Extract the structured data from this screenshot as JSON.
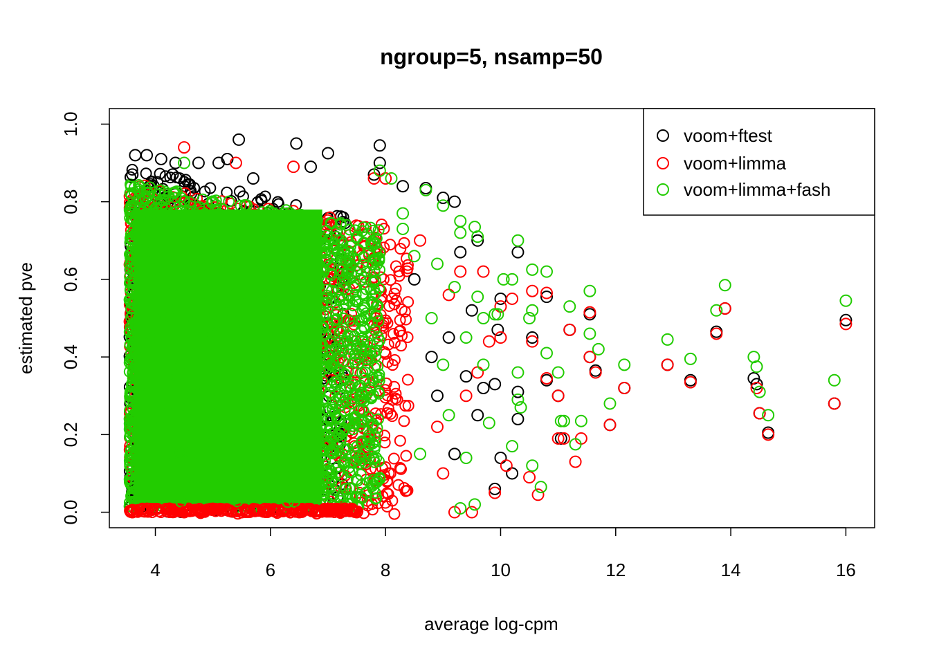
{
  "chart_data": {
    "type": "scatter",
    "title": "ngroup=5, nsamp=50",
    "xlabel": "average log-cpm",
    "ylabel": "estimated pve",
    "xlim": [
      3.2,
      16.5
    ],
    "ylim": [
      -0.04,
      1.04
    ],
    "x_ticks": [
      4,
      6,
      8,
      10,
      12,
      14,
      16
    ],
    "y_ticks": [
      0.0,
      0.2,
      0.4,
      0.6,
      0.8,
      1.0
    ],
    "x_tick_labels": [
      "4",
      "6",
      "8",
      "10",
      "12",
      "14",
      "16"
    ],
    "y_tick_labels": [
      "0.0",
      "0.2",
      "0.4",
      "0.6",
      "0.8",
      "1.0"
    ],
    "grid": false,
    "legend_position": "top-right",
    "marker": "open-circle",
    "dense_region": {
      "x_range": [
        3.55,
        7.9
      ],
      "y_range": [
        0.0,
        0.85
      ],
      "note": "thousands of overlapping points"
    },
    "series": [
      {
        "name": "voom+ftest",
        "color": "#000000",
        "points": [
          [
            3.65,
            0.92
          ],
          [
            3.85,
            0.92
          ],
          [
            4.1,
            0.91
          ],
          [
            4.35,
            0.9
          ],
          [
            4.75,
            0.9
          ],
          [
            5.1,
            0.9
          ],
          [
            5.25,
            0.91
          ],
          [
            5.45,
            0.96
          ],
          [
            6.45,
            0.95
          ],
          [
            7.0,
            0.925
          ],
          [
            7.9,
            0.945
          ],
          [
            7.9,
            0.9
          ],
          [
            3.6,
            0.87
          ],
          [
            4.3,
            0.87
          ],
          [
            5.7,
            0.86
          ],
          [
            6.7,
            0.89
          ],
          [
            7.8,
            0.87
          ],
          [
            8.3,
            0.84
          ],
          [
            8.7,
            0.835
          ],
          [
            9.0,
            0.81
          ],
          [
            9.2,
            0.8
          ],
          [
            9.3,
            0.67
          ],
          [
            9.6,
            0.7
          ],
          [
            9.5,
            0.52
          ],
          [
            9.7,
            0.32
          ],
          [
            9.9,
            0.33
          ],
          [
            9.95,
            0.47
          ],
          [
            10.0,
            0.55
          ],
          [
            10.3,
            0.67
          ],
          [
            10.3,
            0.31
          ],
          [
            10.3,
            0.24
          ],
          [
            10.0,
            0.14
          ],
          [
            10.2,
            0.1
          ],
          [
            9.9,
            0.06
          ],
          [
            10.55,
            0.45
          ],
          [
            10.8,
            0.555
          ],
          [
            10.8,
            0.34
          ],
          [
            11.0,
            0.3
          ],
          [
            11.05,
            0.19
          ],
          [
            11.2,
            0.47
          ],
          [
            11.55,
            0.51
          ],
          [
            11.55,
            0.4
          ],
          [
            11.65,
            0.365
          ],
          [
            11.9,
            0.225
          ],
          [
            12.15,
            0.32
          ],
          [
            12.9,
            0.38
          ],
          [
            13.3,
            0.34
          ],
          [
            13.75,
            0.465
          ],
          [
            13.9,
            0.525
          ],
          [
            14.4,
            0.345
          ],
          [
            14.45,
            0.33
          ],
          [
            14.5,
            0.255
          ],
          [
            14.65,
            0.205
          ],
          [
            15.8,
            0.28
          ],
          [
            16.0,
            0.495
          ],
          [
            9.4,
            0.35
          ],
          [
            9.1,
            0.45
          ],
          [
            8.9,
            0.3
          ],
          [
            9.6,
            0.25
          ],
          [
            8.5,
            0.6
          ],
          [
            8.8,
            0.4
          ],
          [
            9.2,
            0.15
          ]
        ]
      },
      {
        "name": "voom+limma",
        "color": "#ff0000",
        "points": [
          [
            4.5,
            0.94
          ],
          [
            5.4,
            0.9
          ],
          [
            6.4,
            0.89
          ],
          [
            7.8,
            0.86
          ],
          [
            8.0,
            0.86
          ],
          [
            3.6,
            0.0
          ],
          [
            4.5,
            0.0
          ],
          [
            5.5,
            0.0
          ],
          [
            6.5,
            0.0
          ],
          [
            7.5,
            0.0
          ],
          [
            9.2,
            0.0
          ],
          [
            9.5,
            0.0
          ],
          [
            10.0,
            0.53
          ],
          [
            10.2,
            0.55
          ],
          [
            10.55,
            0.57
          ],
          [
            10.8,
            0.565
          ],
          [
            10.55,
            0.44
          ],
          [
            10.8,
            0.345
          ],
          [
            11.0,
            0.3
          ],
          [
            11.0,
            0.19
          ],
          [
            11.1,
            0.19
          ],
          [
            11.2,
            0.47
          ],
          [
            11.3,
            0.13
          ],
          [
            11.4,
            0.19
          ],
          [
            11.55,
            0.515
          ],
          [
            11.55,
            0.4
          ],
          [
            11.65,
            0.36
          ],
          [
            11.9,
            0.225
          ],
          [
            12.15,
            0.32
          ],
          [
            12.9,
            0.38
          ],
          [
            13.3,
            0.335
          ],
          [
            13.75,
            0.46
          ],
          [
            13.9,
            0.525
          ],
          [
            14.45,
            0.32
          ],
          [
            14.5,
            0.255
          ],
          [
            14.65,
            0.2
          ],
          [
            15.8,
            0.28
          ],
          [
            16.0,
            0.485
          ],
          [
            10.5,
            0.09
          ],
          [
            10.65,
            0.045
          ],
          [
            9.9,
            0.05
          ],
          [
            10.1,
            0.12
          ],
          [
            9.6,
            0.36
          ],
          [
            9.8,
            0.44
          ],
          [
            10.0,
            0.45
          ],
          [
            9.3,
            0.62
          ],
          [
            9.7,
            0.62
          ],
          [
            8.9,
            0.22
          ],
          [
            9.1,
            0.56
          ],
          [
            8.6,
            0.7
          ],
          [
            9.0,
            0.1
          ],
          [
            9.4,
            0.3
          ]
        ]
      },
      {
        "name": "voom+limma+fash",
        "color": "#22cc00",
        "points": [
          [
            4.5,
            0.9
          ],
          [
            7.9,
            0.88
          ],
          [
            8.1,
            0.86
          ],
          [
            8.3,
            0.77
          ],
          [
            8.7,
            0.83
          ],
          [
            9.0,
            0.79
          ],
          [
            9.3,
            0.75
          ],
          [
            9.55,
            0.735
          ],
          [
            9.3,
            0.72
          ],
          [
            9.6,
            0.71
          ],
          [
            10.3,
            0.7
          ],
          [
            10.05,
            0.6
          ],
          [
            10.2,
            0.6
          ],
          [
            10.55,
            0.625
          ],
          [
            10.8,
            0.62
          ],
          [
            10.55,
            0.52
          ],
          [
            10.5,
            0.5
          ],
          [
            10.8,
            0.41
          ],
          [
            11.0,
            0.36
          ],
          [
            11.05,
            0.235
          ],
          [
            11.1,
            0.235
          ],
          [
            11.2,
            0.53
          ],
          [
            11.3,
            0.175
          ],
          [
            11.4,
            0.235
          ],
          [
            11.55,
            0.57
          ],
          [
            11.55,
            0.46
          ],
          [
            11.7,
            0.42
          ],
          [
            11.9,
            0.28
          ],
          [
            12.15,
            0.38
          ],
          [
            12.9,
            0.445
          ],
          [
            13.3,
            0.395
          ],
          [
            13.75,
            0.52
          ],
          [
            13.9,
            0.585
          ],
          [
            14.4,
            0.4
          ],
          [
            14.45,
            0.375
          ],
          [
            14.5,
            0.31
          ],
          [
            14.65,
            0.25
          ],
          [
            15.8,
            0.34
          ],
          [
            16.0,
            0.545
          ],
          [
            10.55,
            0.12
          ],
          [
            10.7,
            0.065
          ],
          [
            10.3,
            0.36
          ],
          [
            10.3,
            0.29
          ],
          [
            10.35,
            0.27
          ],
          [
            10.2,
            0.17
          ],
          [
            9.95,
            0.51
          ],
          [
            9.9,
            0.51
          ],
          [
            9.7,
            0.5
          ],
          [
            9.6,
            0.555
          ],
          [
            9.55,
            0.02
          ],
          [
            9.3,
            0.01
          ],
          [
            8.3,
            0.73
          ],
          [
            8.5,
            0.66
          ],
          [
            8.9,
            0.64
          ],
          [
            9.2,
            0.58
          ],
          [
            9.0,
            0.38
          ],
          [
            8.8,
            0.5
          ],
          [
            9.4,
            0.45
          ],
          [
            9.7,
            0.38
          ],
          [
            9.1,
            0.25
          ],
          [
            8.6,
            0.15
          ],
          [
            9.4,
            0.14
          ],
          [
            9.8,
            0.23
          ]
        ]
      }
    ]
  }
}
